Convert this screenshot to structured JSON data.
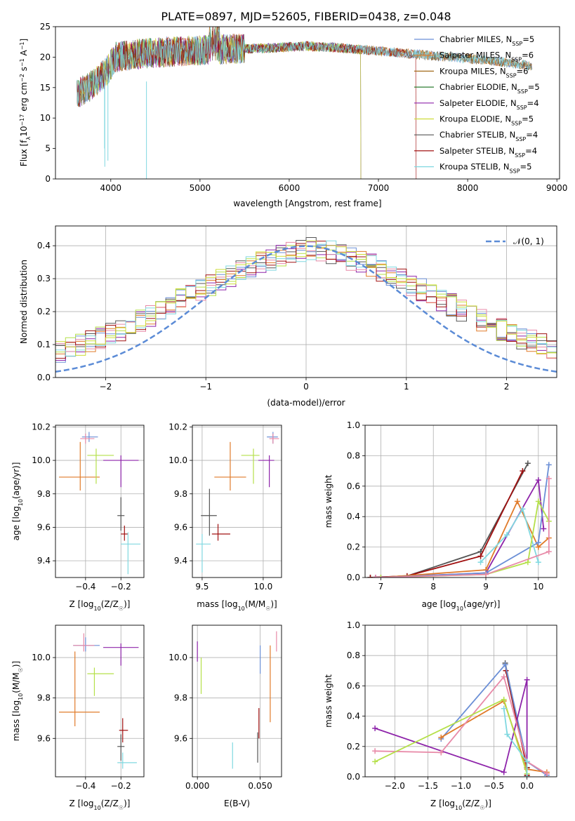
{
  "figure_title": "PLATE=0897, MJD=52605, FIBERID=0438, z=0.048",
  "colors": {
    "Chabrier MILES": "#6b8fd6",
    "Salpeter MILES": "#e07b2a",
    "Kroupa MILES": "#a36b1a",
    "Chabrier ELODIE": "#2e7d32",
    "Salpeter ELODIE": "#8e24aa",
    "Kroupa ELODIE": "#cddc39",
    "Chabrier STELIB": "#555555",
    "Salpeter STELIB": "#a01010",
    "Kroupa STELIB": "#80d8e0",
    "pink": "#e88aa8",
    "lime": "#b5e04a",
    "normal_curve": "#5b8bd6"
  },
  "chart_data": [
    {
      "id": "spectrum",
      "type": "line",
      "title": "PLATE=0897, MJD=52605, FIBERID=0438, z=0.048",
      "xlabel": "wavelength [Angstrom, rest frame]",
      "ylabel": "Flux [f_λ10^-17 erg cm^-2 s^-1 A^-1]",
      "xlim": [
        3380,
        9030
      ],
      "ylim": [
        0,
        25
      ],
      "xticks": [
        4000,
        5000,
        6000,
        7000,
        8000,
        9000
      ],
      "yticks": [
        0,
        5,
        10,
        15,
        20,
        25
      ],
      "grid": false,
      "legend_position": "top-right",
      "series": [
        {
          "name": "Chabrier MILES, N_SSP=5",
          "x_start": 3620,
          "x_end": 8720
        },
        {
          "name": "Salpeter MILES, N_SSP=6",
          "x_start": 3620,
          "x_end": 8720
        },
        {
          "name": "Kroupa MILES, N_SSP=6",
          "x_start": 3620,
          "x_end": 8720
        },
        {
          "name": "Chabrier ELODIE, N_SSP=5",
          "x_start": 3620,
          "x_end": 6800
        },
        {
          "name": "Salpeter ELODIE, N_SSP=4",
          "x_start": 3620,
          "x_end": 6800
        },
        {
          "name": "Kroupa ELODIE, N_SSP=5",
          "x_start": 3620,
          "x_end": 6800
        },
        {
          "name": "Chabrier STELIB, N_SSP=4",
          "x_start": 3620,
          "x_end": 8720
        },
        {
          "name": "Salpeter STELIB, N_SSP=4",
          "x_start": 3620,
          "x_end": 7420
        },
        {
          "name": "Kroupa STELIB, N_SSP=5",
          "x_start": 3620,
          "x_end": 8720
        }
      ],
      "continuum": [
        [
          3620,
          14
        ],
        [
          3800,
          15.5
        ],
        [
          3950,
          17.5
        ],
        [
          4050,
          20
        ],
        [
          4300,
          20.5
        ],
        [
          4800,
          21
        ],
        [
          5300,
          21.3
        ],
        [
          5800,
          21.5
        ],
        [
          6200,
          21.8
        ],
        [
          6600,
          21.5
        ],
        [
          7000,
          21
        ],
        [
          7400,
          20.5
        ],
        [
          7800,
          20
        ],
        [
          8200,
          19.5
        ],
        [
          8500,
          19
        ],
        [
          8720,
          18.5
        ]
      ],
      "annotation": {
        "label": "N_SSP"
      }
    },
    {
      "id": "residual_hist",
      "type": "line",
      "xlabel": "(data-model)/error",
      "ylabel": "Normed distribution",
      "xlim": [
        -2.5,
        2.5
      ],
      "ylim": [
        0,
        0.46
      ],
      "xticks": [
        -2,
        -1,
        0,
        1,
        2
      ],
      "yticks": [
        0.0,
        0.1,
        0.2,
        0.3,
        0.4
      ],
      "grid": true,
      "legend_position": "top-right",
      "legend_label": "𝒩(0, 1)",
      "bin_width": 0.1,
      "base_counts": [
        0.05,
        0.05,
        0.055,
        0.06,
        0.065,
        0.07,
        0.08,
        0.09,
        0.1,
        0.11,
        0.12,
        0.13,
        0.145,
        0.16,
        0.175,
        0.19,
        0.205,
        0.22,
        0.235,
        0.25,
        0.265,
        0.28,
        0.295,
        0.31,
        0.325,
        0.34,
        0.35,
        0.36,
        0.37,
        0.38,
        0.385,
        0.39,
        0.385,
        0.38,
        0.37,
        0.36,
        0.35,
        0.34,
        0.325,
        0.31,
        0.295,
        0.28,
        0.265,
        0.25,
        0.235,
        0.22,
        0.205,
        0.19,
        0.175,
        0.16,
        0.145,
        0.13,
        0.12,
        0.11,
        0.1,
        0.09,
        0.08,
        0.07,
        0.065,
        0.06,
        0.055,
        0.05
      ]
    },
    {
      "id": "age_vs_Z",
      "type": "scatter",
      "xlabel": "Z [log10(Z/Z☉)]",
      "ylabel": "age [log10(age/yr)]",
      "xlim": [
        -0.57,
        -0.07
      ],
      "ylim": [
        9.3,
        10.21
      ],
      "xticks": [
        -0.4,
        -0.2
      ],
      "yticks": [
        9.4,
        9.6,
        9.8,
        10.0,
        10.2
      ],
      "grid": true,
      "points": [
        {
          "x": -0.38,
          "xlo": -0.42,
          "xhi": -0.33,
          "y": 10.14,
          "ylo": 10.11,
          "yhi": 10.17,
          "color": "#6b8fd6"
        },
        {
          "x": -0.4,
          "xlo": -0.43,
          "xhi": -0.35,
          "y": 10.13,
          "ylo": 10.1,
          "yhi": 10.16,
          "color": "#e88aa8"
        },
        {
          "x": -0.43,
          "xlo": -0.55,
          "xhi": -0.32,
          "y": 9.9,
          "ylo": 9.82,
          "yhi": 10.11,
          "color": "#e07b2a"
        },
        {
          "x": -0.34,
          "xlo": -0.39,
          "xhi": -0.24,
          "y": 10.03,
          "ylo": 9.86,
          "yhi": 10.07,
          "color": "#b5e04a"
        },
        {
          "x": -0.2,
          "xlo": -0.3,
          "xhi": -0.1,
          "y": 10.0,
          "ylo": 9.84,
          "yhi": 10.03,
          "color": "#8e24aa"
        },
        {
          "x": -0.2,
          "xlo": -0.22,
          "xhi": -0.18,
          "y": 9.67,
          "ylo": 9.58,
          "yhi": 9.78,
          "color": "#555555"
        },
        {
          "x": -0.18,
          "xlo": -0.2,
          "xhi": -0.16,
          "y": 9.56,
          "ylo": 9.52,
          "yhi": 9.61,
          "color": "#a01010"
        },
        {
          "x": -0.16,
          "xlo": -0.2,
          "xhi": -0.09,
          "y": 9.5,
          "ylo": 9.32,
          "yhi": 9.57,
          "color": "#80d8e0"
        }
      ]
    },
    {
      "id": "age_vs_mass",
      "type": "scatter",
      "xlabel": "mass [log10(M/M☉)]",
      "ylabel": "",
      "xlim": [
        9.42,
        10.15
      ],
      "ylim": [
        9.3,
        10.21
      ],
      "xticks": [
        9.5,
        10.0
      ],
      "yticks": [
        9.4,
        9.6,
        9.8,
        10.0,
        10.2
      ],
      "grid": true,
      "points": [
        {
          "x": 10.08,
          "xlo": 10.03,
          "xhi": 10.12,
          "y": 10.14,
          "ylo": 10.1,
          "yhi": 10.17,
          "color": "#6b8fd6"
        },
        {
          "x": 10.08,
          "xlo": 10.05,
          "xhi": 10.13,
          "y": 10.13,
          "ylo": 10.1,
          "yhi": 10.16,
          "color": "#e88aa8"
        },
        {
          "x": 9.73,
          "xlo": 9.6,
          "xhi": 9.86,
          "y": 9.9,
          "ylo": 9.82,
          "yhi": 10.11,
          "color": "#e07b2a"
        },
        {
          "x": 9.92,
          "xlo": 9.82,
          "xhi": 9.97,
          "y": 10.03,
          "ylo": 9.86,
          "yhi": 10.07,
          "color": "#b5e04a"
        },
        {
          "x": 10.05,
          "xlo": 9.96,
          "xhi": 10.09,
          "y": 10.0,
          "ylo": 9.84,
          "yhi": 10.03,
          "color": "#8e24aa"
        },
        {
          "x": 9.56,
          "xlo": 9.49,
          "xhi": 9.62,
          "y": 9.67,
          "ylo": 9.55,
          "yhi": 9.83,
          "color": "#555555"
        },
        {
          "x": 9.63,
          "xlo": 9.58,
          "xhi": 9.73,
          "y": 9.56,
          "ylo": 9.52,
          "yhi": 9.62,
          "color": "#a01010"
        },
        {
          "x": 9.5,
          "xlo": 9.45,
          "xhi": 9.57,
          "y": 9.5,
          "ylo": 9.33,
          "yhi": 9.56,
          "color": "#80d8e0"
        }
      ]
    },
    {
      "id": "mass_weight_vs_age",
      "type": "line",
      "xlabel": "age [log10(age/yr)]",
      "ylabel": "mass weight",
      "xlim": [
        6.7,
        10.35
      ],
      "ylim": [
        0,
        1.0
      ],
      "xticks": [
        7,
        8,
        9,
        10
      ],
      "yticks": [
        0.0,
        0.2,
        0.4,
        0.6,
        0.8,
        1.0
      ],
      "grid": true,
      "series": [
        {
          "color": "#555555",
          "x": [
            6.8,
            7.5,
            8.9,
            9.8
          ],
          "y": [
            0.0,
            0.01,
            0.17,
            0.75
          ]
        },
        {
          "color": "#a01010",
          "x": [
            6.8,
            7.5,
            8.9,
            9.7
          ],
          "y": [
            0.0,
            0.01,
            0.14,
            0.7
          ]
        },
        {
          "color": "#8e24aa",
          "x": [
            6.9,
            9.0,
            10.0,
            10.1
          ],
          "y": [
            0.0,
            0.03,
            0.64,
            0.32
          ]
        },
        {
          "color": "#e07b2a",
          "x": [
            7.0,
            9.0,
            9.6,
            10.0,
            10.2
          ],
          "y": [
            0.0,
            0.05,
            0.5,
            0.2,
            0.26
          ]
        },
        {
          "color": "#6b8fd6",
          "x": [
            7.0,
            9.0,
            10.0,
            10.2
          ],
          "y": [
            0.0,
            0.03,
            0.23,
            0.74
          ]
        },
        {
          "color": "#80d8e0",
          "x": [
            8.9,
            9.4,
            9.7,
            10.0
          ],
          "y": [
            0.1,
            0.28,
            0.45,
            0.1
          ]
        },
        {
          "color": "#b5e04a",
          "x": [
            7.0,
            9.0,
            9.8,
            10.0,
            10.2
          ],
          "y": [
            0.0,
            0.02,
            0.1,
            0.5,
            0.37
          ]
        },
        {
          "color": "#e88aa8",
          "x": [
            6.9,
            9.0,
            10.2,
            10.2
          ],
          "y": [
            0.0,
            0.02,
            0.17,
            0.65
          ]
        }
      ]
    },
    {
      "id": "mass_vs_Z",
      "type": "scatter",
      "xlabel": "Z [log10(Z/Z☉)]",
      "ylabel": "mass [log10(M/M☉)]",
      "xlim": [
        -0.57,
        -0.07
      ],
      "ylim": [
        9.41,
        10.16
      ],
      "xticks": [
        -0.4,
        -0.2
      ],
      "yticks": [
        9.6,
        9.8,
        10.0
      ],
      "grid": true,
      "points": [
        {
          "x": -0.4,
          "xlo": -0.47,
          "xhi": -0.32,
          "y": 10.06,
          "ylo": 10.03,
          "yhi": 10.1,
          "color": "#6b8fd6"
        },
        {
          "x": -0.41,
          "xlo": -0.47,
          "xhi": -0.35,
          "y": 10.06,
          "ylo": 10.03,
          "yhi": 10.12,
          "color": "#e88aa8"
        },
        {
          "x": -0.46,
          "xlo": -0.55,
          "xhi": -0.32,
          "y": 9.73,
          "ylo": 9.66,
          "yhi": 10.03,
          "color": "#e07b2a"
        },
        {
          "x": -0.35,
          "xlo": -0.39,
          "xhi": -0.24,
          "y": 9.92,
          "ylo": 9.81,
          "yhi": 9.95,
          "color": "#b5e04a"
        },
        {
          "x": -0.2,
          "xlo": -0.3,
          "xhi": -0.1,
          "y": 10.05,
          "ylo": 9.96,
          "yhi": 10.07,
          "color": "#8e24aa"
        },
        {
          "x": -0.2,
          "xlo": -0.22,
          "xhi": -0.18,
          "y": 9.56,
          "ylo": 9.49,
          "yhi": 9.62,
          "color": "#555555"
        },
        {
          "x": -0.19,
          "xlo": -0.21,
          "xhi": -0.16,
          "y": 9.64,
          "ylo": 9.58,
          "yhi": 9.7,
          "color": "#a01010"
        },
        {
          "x": -0.19,
          "xlo": -0.22,
          "xhi": -0.11,
          "y": 9.48,
          "ylo": 9.45,
          "yhi": 9.53,
          "color": "#80d8e0"
        }
      ]
    },
    {
      "id": "mass_vs_EBV",
      "type": "scatter",
      "xlabel": "E(B-V)",
      "ylabel": "",
      "xlim": [
        -0.004,
        0.067
      ],
      "ylim": [
        9.41,
        10.16
      ],
      "xticks": [
        0.0,
        0.05
      ],
      "yticks": [
        9.6,
        9.8,
        10.0
      ],
      "xticklabels": [
        "0.000",
        "0.050"
      ],
      "grid": true,
      "points": [
        {
          "x": 0.0,
          "ylo": 9.98,
          "yhi": 10.08,
          "color": "#8e24aa"
        },
        {
          "x": 0.003,
          "ylo": 9.82,
          "yhi": 10.0,
          "color": "#b5e04a"
        },
        {
          "x": 0.028,
          "ylo": 9.45,
          "yhi": 9.58,
          "color": "#80d8e0"
        },
        {
          "x": 0.048,
          "ylo": 9.48,
          "yhi": 9.63,
          "color": "#555555"
        },
        {
          "x": 0.049,
          "ylo": 9.6,
          "yhi": 9.75,
          "color": "#a01010"
        },
        {
          "x": 0.05,
          "ylo": 9.92,
          "yhi": 10.06,
          "color": "#6b8fd6"
        },
        {
          "x": 0.058,
          "ylo": 9.68,
          "yhi": 10.06,
          "color": "#e07b2a"
        },
        {
          "x": 0.063,
          "ylo": 10.03,
          "yhi": 10.13,
          "color": "#e88aa8"
        }
      ]
    },
    {
      "id": "mass_weight_vs_Z",
      "type": "line",
      "xlabel": "Z [log10(Z/Z☉)]",
      "ylabel": "mass weight",
      "xlim": [
        -2.45,
        0.45
      ],
      "ylim": [
        0,
        1.0
      ],
      "xticks": [
        -2.0,
        -1.5,
        -1.0,
        -0.5,
        0.0
      ],
      "yticks": [
        0.0,
        0.2,
        0.4,
        0.6,
        0.8,
        1.0
      ],
      "grid": true,
      "series": [
        {
          "color": "#555555",
          "x": [
            -0.33,
            0.0,
            0.0
          ],
          "y": [
            0.75,
            0.06,
            0.01
          ]
        },
        {
          "color": "#a01010",
          "x": [
            -0.32,
            0.0,
            0.0
          ],
          "y": [
            0.7,
            0.06,
            0.01
          ]
        },
        {
          "color": "#6b8fd6",
          "x": [
            -1.3,
            -0.33,
            0.0,
            0.3
          ],
          "y": [
            0.25,
            0.74,
            0.1,
            0.01
          ]
        },
        {
          "color": "#e07b2a",
          "x": [
            -1.3,
            -0.35,
            0.0,
            0.3
          ],
          "y": [
            0.26,
            0.5,
            0.05,
            0.03
          ]
        },
        {
          "color": "#8e24aa",
          "x": [
            -2.3,
            -0.35,
            0.0,
            0.0
          ],
          "y": [
            0.32,
            0.03,
            0.64,
            0.0
          ]
        },
        {
          "color": "#e88aa8",
          "x": [
            -2.3,
            -1.3,
            -0.35,
            0.0,
            0.3
          ],
          "y": [
            0.17,
            0.16,
            0.66,
            0.1,
            0.02
          ]
        },
        {
          "color": "#b5e04a",
          "x": [
            -2.3,
            -0.35,
            0.0,
            0.0
          ],
          "y": [
            0.1,
            0.51,
            0.02,
            0.0
          ]
        },
        {
          "color": "#80d8e0",
          "x": [
            -0.35,
            -0.3,
            0.0,
            0.0
          ],
          "y": [
            0.45,
            0.28,
            0.1,
            0.0
          ]
        }
      ]
    }
  ]
}
